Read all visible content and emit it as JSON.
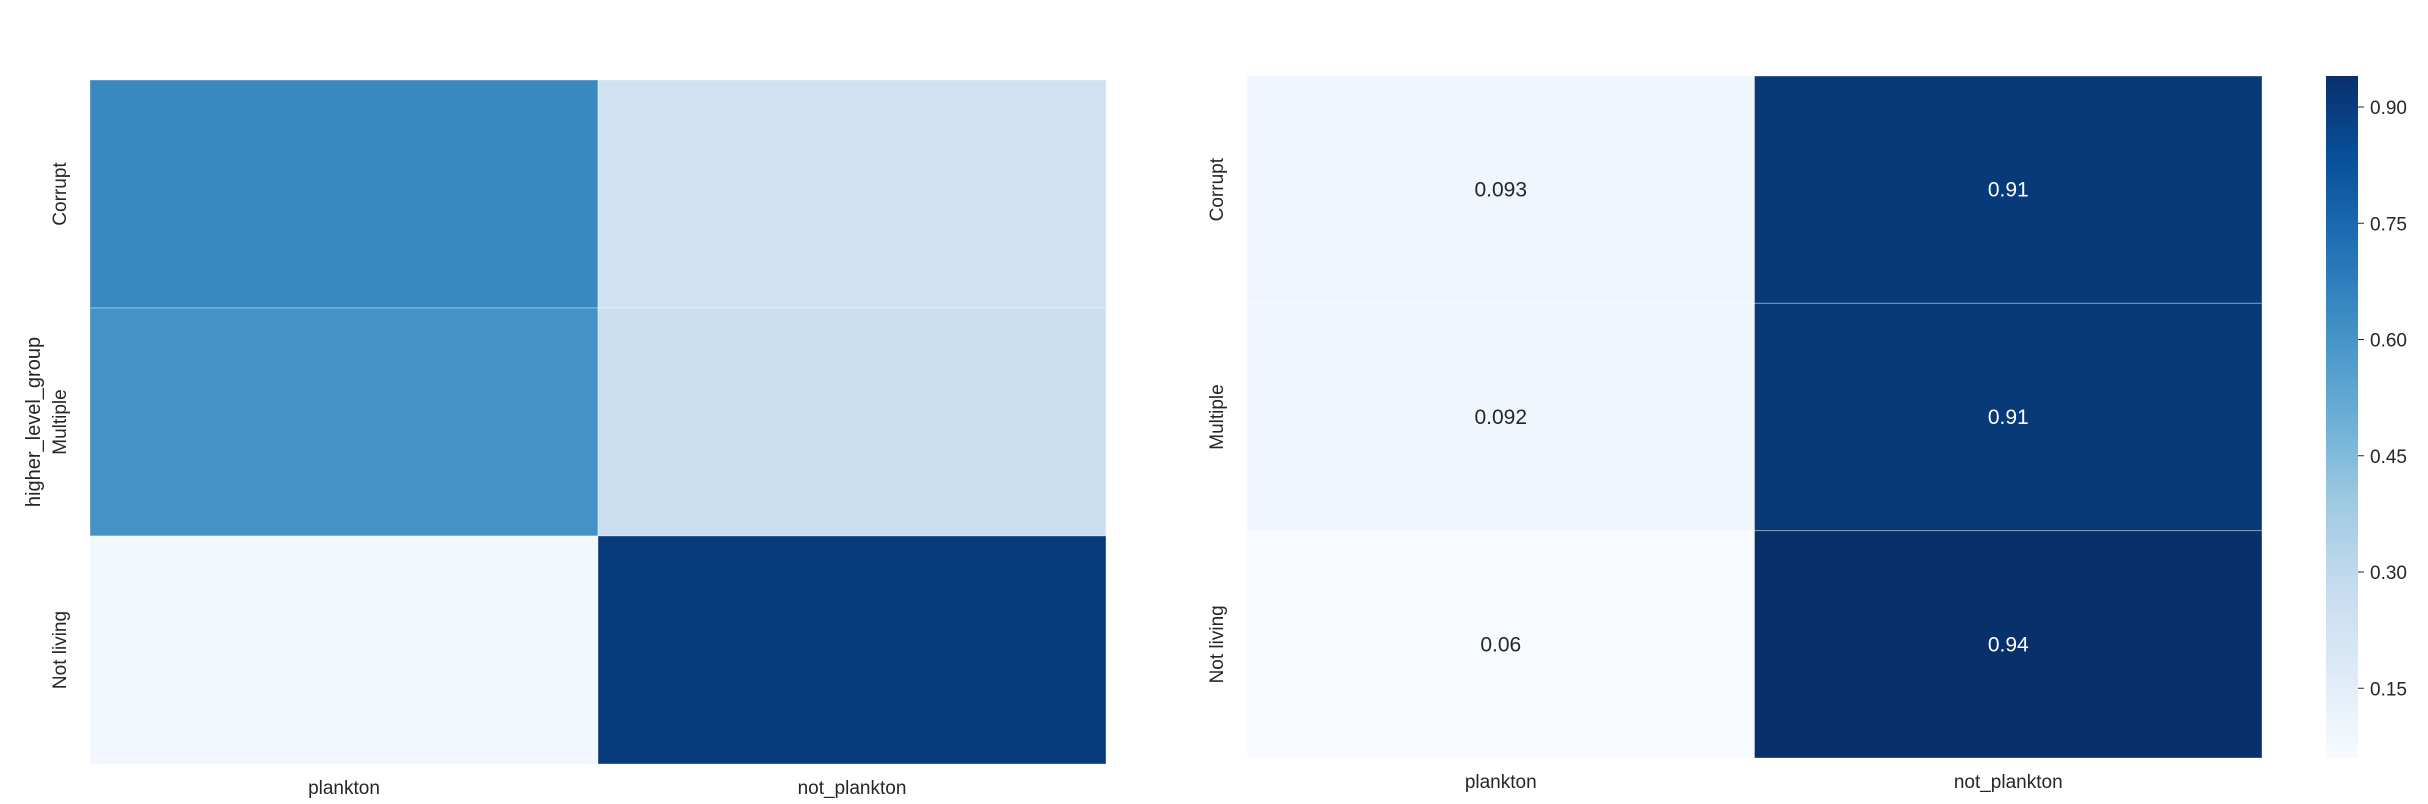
{
  "chart_data": [
    {
      "type": "heatmap",
      "title": "",
      "xlabel": "",
      "ylabel": "higher_level_group",
      "x_categories": [
        "plankton",
        "not_plankton"
      ],
      "y_categories": [
        "Corrupt",
        "Multiple",
        "Not living"
      ],
      "values": [
        [
          0.66,
          0.2
        ],
        [
          0.62,
          0.23
        ],
        [
          0.02,
          0.96
        ]
      ],
      "annotated": false,
      "colormap": "Blues",
      "vmin": 0.0,
      "vmax": 1.0,
      "grid": false
    },
    {
      "type": "heatmap",
      "title": "",
      "xlabel": "",
      "ylabel": "",
      "x_categories": [
        "plankton",
        "not_plankton"
      ],
      "y_categories": [
        "Corrupt",
        "Multiple",
        "Not living"
      ],
      "values": [
        [
          0.093,
          0.91
        ],
        [
          0.092,
          0.91
        ],
        [
          0.06,
          0.94
        ]
      ],
      "annotations": [
        [
          "0.093",
          "0.91"
        ],
        [
          "0.092",
          "0.91"
        ],
        [
          "0.06",
          "0.94"
        ]
      ],
      "annotated": true,
      "colormap": "Blues",
      "vmin": 0.06,
      "vmax": 0.94,
      "colorbar": {
        "ticks": [
          0.15,
          0.3,
          0.45,
          0.6,
          0.75,
          0.9
        ],
        "tick_labels": [
          "0.15",
          "0.30",
          "0.45",
          "0.60",
          "0.75",
          "0.90"
        ]
      },
      "grid": false
    }
  ]
}
